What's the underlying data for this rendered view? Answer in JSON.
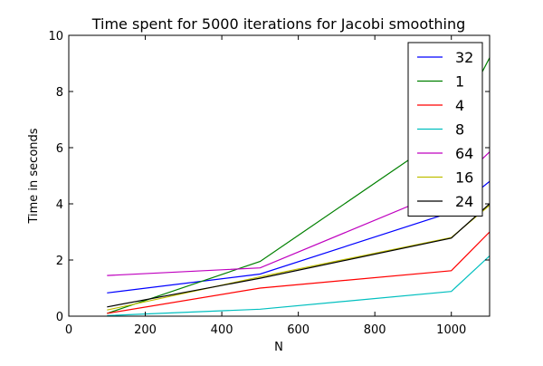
{
  "chart_data": {
    "type": "line",
    "title": "Time spent for 5000 iterations for Jacobi smoothing",
    "xlabel": "N",
    "ylabel": "Time in seconds",
    "xlim": [
      0,
      1100
    ],
    "ylim": [
      0,
      10
    ],
    "xticks": [
      0,
      200,
      400,
      600,
      800,
      1000
    ],
    "yticks": [
      0,
      2,
      4,
      6,
      8,
      10
    ],
    "grid": false,
    "legend_position": "top-right",
    "x": [
      100,
      500,
      1000,
      1100
    ],
    "series": [
      {
        "name": "32",
        "color": "#0000ff",
        "values": [
          0.83,
          1.5,
          3.7,
          4.8
        ]
      },
      {
        "name": "1",
        "color": "#008000",
        "values": [
          0.1,
          1.95,
          6.6,
          9.2
        ]
      },
      {
        "name": "4",
        "color": "#ff0000",
        "values": [
          0.1,
          1.0,
          1.62,
          3.0
        ]
      },
      {
        "name": "8",
        "color": "#00bfbf",
        "values": [
          0.02,
          0.25,
          0.88,
          2.15
        ]
      },
      {
        "name": "64",
        "color": "#bf00bf",
        "values": [
          1.45,
          1.72,
          4.55,
          5.85
        ]
      },
      {
        "name": "16",
        "color": "#bfbf00",
        "values": [
          0.22,
          1.4,
          2.8,
          3.95
        ]
      },
      {
        "name": "24",
        "color": "#000000",
        "values": [
          0.33,
          1.35,
          2.78,
          4.0
        ]
      }
    ]
  }
}
